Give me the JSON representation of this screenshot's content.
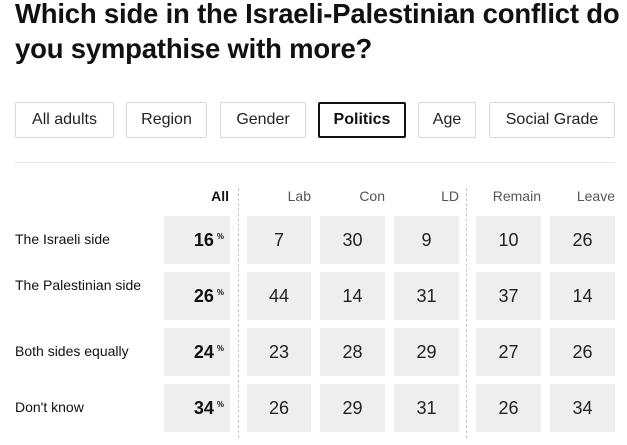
{
  "title": "Which side in the Israeli-Palestinian conflict do you sympathise with more?",
  "tabs": [
    {
      "label": "All adults",
      "active": false
    },
    {
      "label": "Region",
      "active": false
    },
    {
      "label": "Gender",
      "active": false
    },
    {
      "label": "Politics",
      "active": true
    },
    {
      "label": "Age",
      "active": false
    },
    {
      "label": "Social Grade",
      "active": false
    }
  ],
  "columns": [
    "All",
    "Lab",
    "Con",
    "LD",
    "Remain",
    "Leave"
  ],
  "percent_symbol": "%",
  "rows": [
    {
      "label": "The Israeli side",
      "values": [
        "16",
        "7",
        "30",
        "9",
        "10",
        "26"
      ]
    },
    {
      "label": "The Palestinian side",
      "values": [
        "26",
        "44",
        "14",
        "31",
        "37",
        "14"
      ]
    },
    {
      "label": "Both sides equally",
      "values": [
        "24",
        "23",
        "28",
        "29",
        "27",
        "26"
      ]
    },
    {
      "label": "Don't know",
      "values": [
        "34",
        "26",
        "29",
        "31",
        "26",
        "34"
      ]
    }
  ]
}
